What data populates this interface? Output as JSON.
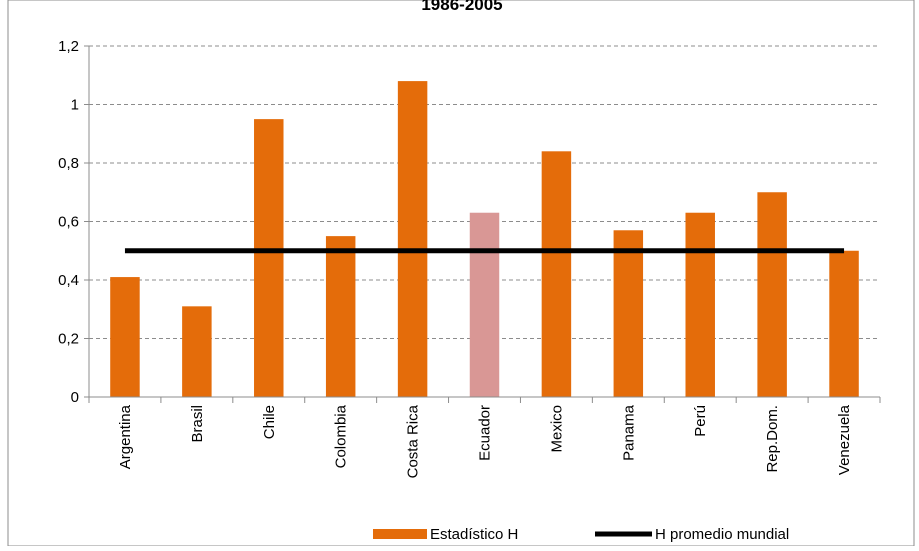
{
  "chart_data": {
    "type": "bar",
    "title": "1986-2005",
    "xlabel": "",
    "ylabel": "",
    "categories": [
      "Argentina",
      "Brasil",
      "Chile",
      "Colombia",
      "Costa Rica",
      "Ecuador",
      "Mexico",
      "Panama",
      "Perú",
      "Rep.Dom.",
      "Venezuela"
    ],
    "series": [
      {
        "name": "Estadístico H",
        "values": [
          0.41,
          0.31,
          0.95,
          0.55,
          1.08,
          0.63,
          0.84,
          0.57,
          0.63,
          0.7,
          0.5
        ],
        "color": "#E46C0A",
        "highlight": {
          "category": "Ecuador",
          "color": "#D99795"
        }
      },
      {
        "name": "H promedio mundial",
        "type": "line",
        "value": 0.5,
        "color": "#000000"
      }
    ],
    "ylim": [
      0,
      1.2
    ],
    "yticks": [
      "0",
      "0,2",
      "0,4",
      "0,6",
      "0,8",
      "1",
      "1,2"
    ],
    "ytick_values": [
      0,
      0.2,
      0.4,
      0.6,
      0.8,
      1.0,
      1.2
    ],
    "grid": true,
    "legend": "bottom"
  }
}
